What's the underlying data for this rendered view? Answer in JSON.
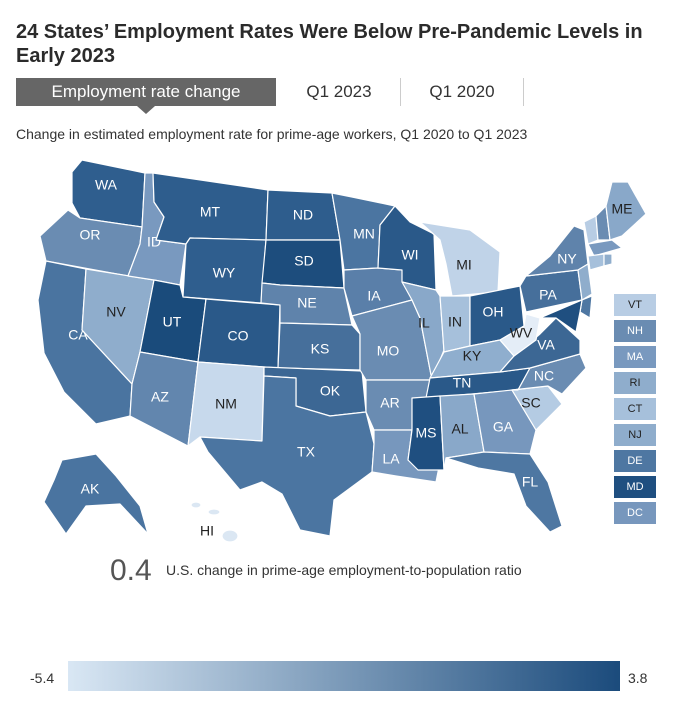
{
  "title": "24 States’ Employment Rates Were Below Pre-Pandemic Levels in Early 2023",
  "tabs": [
    {
      "label": "Employment rate change",
      "active": true
    },
    {
      "label": "Q1 2023",
      "active": false
    },
    {
      "label": "Q1 2020",
      "active": false
    }
  ],
  "subtitle": "Change in estimated employment rate for prime-age workers, Q1 2020 to Q1 2023",
  "colors": {
    "lightest": "#d9e7f4",
    "darkest": "#1b4b7c"
  },
  "states": {
    "WA": {
      "label": "WA",
      "shade": "#2f5e8e"
    },
    "OR": {
      "label": "OR",
      "shade": "#6a8cb2"
    },
    "CA": {
      "label": "CA",
      "shade": "#4a74a0"
    },
    "NV": {
      "label": "NV",
      "shade": "#8fadcc"
    },
    "ID": {
      "label": "ID",
      "shade": "#7999bf"
    },
    "MT": {
      "label": "MT",
      "shade": "#2e5d8d"
    },
    "WY": {
      "label": "WY",
      "shade": "#2f5e8e"
    },
    "UT": {
      "label": "UT",
      "shade": "#1a4b7b"
    },
    "AZ": {
      "label": "AZ",
      "shade": "#6286ae"
    },
    "CO": {
      "label": "CO",
      "shade": "#2a5989"
    },
    "NM": {
      "label": "NM",
      "shade": "#c7d9ec"
    },
    "ND": {
      "label": "ND",
      "shade": "#2e5d8d"
    },
    "SD": {
      "label": "SD",
      "shade": "#1d4d7d"
    },
    "NE": {
      "label": "NE",
      "shade": "#5f83ab"
    },
    "KS": {
      "label": "KS",
      "shade": "#466f9b"
    },
    "OK": {
      "label": "OK",
      "shade": "#3c6794"
    },
    "TX": {
      "label": "TX",
      "shade": "#4b75a1"
    },
    "MN": {
      "label": "MN",
      "shade": "#4b75a1"
    },
    "IA": {
      "label": "IA",
      "shade": "#5a7fa9"
    },
    "MO": {
      "label": "MO",
      "shade": "#6a8cb2"
    },
    "AR": {
      "label": "AR",
      "shade": "#6a8cb2"
    },
    "LA": {
      "label": "LA",
      "shade": "#7797bd"
    },
    "WI": {
      "label": "WI",
      "shade": "#2a5989"
    },
    "IL": {
      "label": "IL",
      "shade": "#89a8c9"
    },
    "MI": {
      "label": "MI",
      "shade": "#c0d3e8"
    },
    "IN": {
      "label": "IN",
      "shade": "#a6c0db"
    },
    "OH": {
      "label": "OH",
      "shade": "#2a5989"
    },
    "KY": {
      "label": "KY",
      "shade": "#8faece"
    },
    "TN": {
      "label": "TN",
      "shade": "#2a5989"
    },
    "MS": {
      "label": "MS",
      "shade": "#1f4f80"
    },
    "AL": {
      "label": "AL",
      "shade": "#89a8c9"
    },
    "GA": {
      "label": "GA",
      "shade": "#7797bd"
    },
    "FL": {
      "label": "FL",
      "shade": "#4e77a2"
    },
    "SC": {
      "label": "SC",
      "shade": "#b4cbe3"
    },
    "NC": {
      "label": "NC",
      "shade": "#6a8cb2"
    },
    "VA": {
      "label": "VA",
      "shade": "#3c6794"
    },
    "WV": {
      "label": "WV",
      "shade": "#e4edf7"
    },
    "PA": {
      "label": "PA",
      "shade": "#466f9b"
    },
    "NY": {
      "label": "NY",
      "shade": "#5f83ab"
    },
    "ME": {
      "label": "ME",
      "shade": "#89a8c9"
    },
    "AK": {
      "label": "AK",
      "shade": "#4a74a0"
    },
    "HI": {
      "label": "HI",
      "shade": "#dbe7f3"
    }
  },
  "small_states": [
    {
      "label": "VT",
      "shade": "#b8cde4"
    },
    {
      "label": "NH",
      "shade": "#6a8cb2"
    },
    {
      "label": "MA",
      "shade": "#7999bf"
    },
    {
      "label": "RI",
      "shade": "#8fadcc"
    },
    {
      "label": "CT",
      "shade": "#a6c0db"
    },
    {
      "label": "NJ",
      "shade": "#8fadcc"
    },
    {
      "label": "DE",
      "shade": "#4e77a2"
    },
    {
      "label": "MD",
      "shade": "#1f4f80"
    },
    {
      "label": "DC",
      "shade": "#7797bd"
    }
  ],
  "summary": {
    "value": "0.4",
    "text": "U.S. change in prime-age employment-to-population ratio"
  },
  "legend": {
    "min": "-5.4",
    "max": "3.8"
  }
}
